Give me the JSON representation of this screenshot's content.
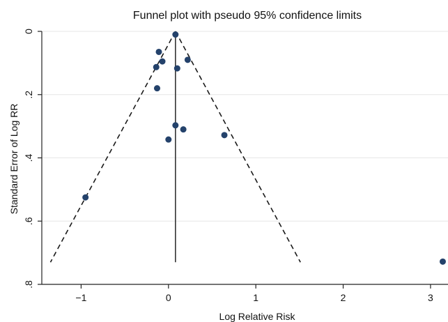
{
  "chart_data": {
    "type": "scatter",
    "title": "Funnel plot with pseudo 95% confidence limits",
    "xlabel": "Log Relative Risk",
    "ylabel": "Standard Error of Log RR",
    "xlim": [
      -1.45,
      3.2
    ],
    "ylim": [
      0,
      0.8
    ],
    "y_inverted": true,
    "grid": true,
    "xticks": [
      -1,
      0,
      1,
      2,
      3
    ],
    "xtick_labels": [
      "−1",
      "0",
      "1",
      "2",
      "3"
    ],
    "yticks": [
      0,
      0.2,
      0.4,
      0.6,
      0.8
    ],
    "ytick_labels": [
      "0",
      ".2",
      ".4",
      ".6",
      ".8"
    ],
    "pooled_estimate": 0.08,
    "funnel_max_se": 0.73,
    "points": [
      {
        "x": 0.08,
        "y": 0.01
      },
      {
        "x": -0.11,
        "y": 0.065
      },
      {
        "x": -0.07,
        "y": 0.095
      },
      {
        "x": -0.14,
        "y": 0.113
      },
      {
        "x": 0.22,
        "y": 0.09
      },
      {
        "x": 0.1,
        "y": 0.117
      },
      {
        "x": -0.13,
        "y": 0.18
      },
      {
        "x": 0.08,
        "y": 0.297
      },
      {
        "x": 0.17,
        "y": 0.31
      },
      {
        "x": 0.64,
        "y": 0.328
      },
      {
        "x": 0.0,
        "y": 0.342
      },
      {
        "x": -0.95,
        "y": 0.525
      },
      {
        "x": 3.14,
        "y": 0.728
      }
    ]
  }
}
